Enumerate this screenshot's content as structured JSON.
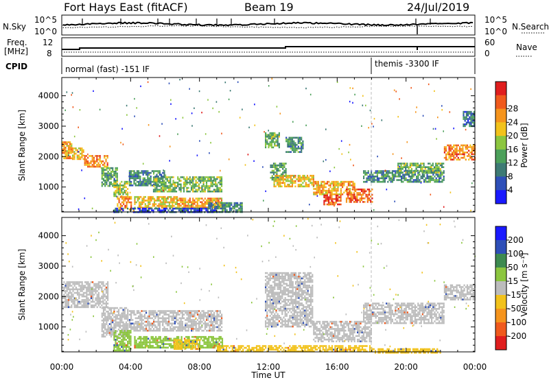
{
  "header": {
    "station": "Fort Hays East (fitACF)",
    "beam": "Beam 19",
    "date": "24/Jul/2019"
  },
  "top_panels": {
    "nsky_label": "N.Sky",
    "nsky_ticks": [
      "10^5",
      "10^0"
    ],
    "nsearch_label": "N.Search",
    "freq_label_1": "Freq.",
    "freq_label_2": "[MHz]",
    "freq_ticks": [
      "12",
      "8"
    ],
    "nave_ticks": [
      "60",
      "0"
    ],
    "nave_label": "Nave",
    "cpid_label": "CPID",
    "modes": [
      {
        "label": "normal (fast) -151 IF",
        "start_hour": 0,
        "end_hour": 18.0
      },
      {
        "label": "themis -3300 IF",
        "start_hour": 18.0,
        "end_hour": 24
      }
    ]
  },
  "chart_data": [
    {
      "type": "heatmap",
      "name": "power",
      "xlabel": "",
      "ylabel": "Slant Range [km]",
      "xlim": [
        0,
        24
      ],
      "ylim": [
        180,
        4600
      ],
      "yticks": [
        "1000",
        "2000",
        "3000",
        "4000"
      ],
      "colorbar_label": "Power [dB]",
      "colorbar_ticks": [
        "4",
        "8",
        "12",
        "16",
        "20",
        "24",
        "28"
      ],
      "colorbar_range": [
        0,
        32
      ],
      "colors": [
        "#1a1aff",
        "#2e4fb8",
        "#3d7a74",
        "#4ca05a",
        "#8cc63f",
        "#f2c21b",
        "#f5941d",
        "#f05a1d",
        "#e01e1e"
      ],
      "bands": [
        {
          "x0": 0.0,
          "x1": 0.6,
          "y0": 1950,
          "y1": 2500,
          "value": 22
        },
        {
          "x0": 0.6,
          "x1": 1.3,
          "y0": 1900,
          "y1": 2300,
          "value": 20
        },
        {
          "x0": 1.3,
          "x1": 2.7,
          "y0": 1650,
          "y1": 2050,
          "value": 24
        },
        {
          "x0": 2.3,
          "x1": 3.2,
          "y0": 1050,
          "y1": 1650,
          "value": 12
        },
        {
          "x0": 3.0,
          "x1": 3.8,
          "y0": 700,
          "y1": 1200,
          "value": 16
        },
        {
          "x0": 3.2,
          "x1": 4.0,
          "y0": 250,
          "y1": 700,
          "value": 24
        },
        {
          "x0": 3.9,
          "x1": 6.0,
          "y0": 1050,
          "y1": 1550,
          "value": 10
        },
        {
          "x0": 5.3,
          "x1": 9.3,
          "y0": 850,
          "y1": 1350,
          "value": 14
        },
        {
          "x0": 4.2,
          "x1": 6.7,
          "y0": 300,
          "y1": 700,
          "value": 20
        },
        {
          "x0": 6.7,
          "x1": 9.3,
          "y0": 300,
          "y1": 650,
          "value": 22
        },
        {
          "x0": 8.5,
          "x1": 10.5,
          "y0": 200,
          "y1": 500,
          "value": 10
        },
        {
          "x0": 11.8,
          "x1": 12.6,
          "y0": 2300,
          "y1": 2800,
          "value": 14
        },
        {
          "x0": 12.1,
          "x1": 13.0,
          "y0": 1250,
          "y1": 1800,
          "value": 12
        },
        {
          "x0": 12.3,
          "x1": 14.6,
          "y0": 1000,
          "y1": 1400,
          "value": 20
        },
        {
          "x0": 14.6,
          "x1": 17.0,
          "y0": 750,
          "y1": 1200,
          "value": 22
        },
        {
          "x0": 15.2,
          "x1": 16.2,
          "y0": 400,
          "y1": 750,
          "value": 28
        },
        {
          "x0": 16.5,
          "x1": 18.0,
          "y0": 500,
          "y1": 950,
          "value": 26
        },
        {
          "x0": 17.5,
          "x1": 22.2,
          "y0": 1150,
          "y1": 1550,
          "value": 10
        },
        {
          "x0": 19.5,
          "x1": 22.2,
          "y0": 1450,
          "y1": 1800,
          "value": 14
        },
        {
          "x0": 22.2,
          "x1": 24.0,
          "y0": 1900,
          "y1": 2400,
          "value": 24
        },
        {
          "x0": 23.3,
          "x1": 24.0,
          "y0": 3000,
          "y1": 3500,
          "value": 8
        },
        {
          "x0": 13.0,
          "x1": 14.0,
          "y0": 2150,
          "y1": 2650,
          "value": 10
        },
        {
          "x0": 3.0,
          "x1": 9.0,
          "y0": 180,
          "y1": 320,
          "value": 6
        }
      ]
    },
    {
      "type": "heatmap",
      "name": "velocity",
      "xlabel": "Time UT",
      "ylabel": "Slant Range [km]",
      "xlim": [
        0,
        24
      ],
      "ylim": [
        180,
        4600
      ],
      "xticks": [
        "00:00",
        "04:00",
        "08:00",
        "12:00",
        "16:00",
        "20:00",
        "00:00"
      ],
      "yticks": [
        "1000",
        "2000",
        "3000",
        "4000"
      ],
      "colorbar_label": "Velocity [m s⁻¹]",
      "colorbar_ticks": [
        "200",
        "100",
        "50",
        "15",
        "-15",
        "-50",
        "-100",
        "-200"
      ],
      "colors": [
        "#1a1aff",
        "#2e4fb8",
        "#3d8a50",
        "#8cc63f",
        "#bcbcbc",
        "#f2c21b",
        "#f5941d",
        "#f05a1d",
        "#e01e1e"
      ],
      "bands": [
        {
          "x0": 0.0,
          "x1": 2.7,
          "y0": 1650,
          "y1": 2500,
          "value": 0
        },
        {
          "x0": 2.3,
          "x1": 3.8,
          "y0": 700,
          "y1": 1650,
          "value": 0
        },
        {
          "x0": 3.0,
          "x1": 4.0,
          "y0": 250,
          "y1": 900,
          "value": 30
        },
        {
          "x0": 3.9,
          "x1": 9.3,
          "y0": 850,
          "y1": 1550,
          "value": 0
        },
        {
          "x0": 4.2,
          "x1": 9.3,
          "y0": 300,
          "y1": 700,
          "value": 25
        },
        {
          "x0": 6.5,
          "x1": 8.0,
          "y0": 300,
          "y1": 600,
          "value": -40
        },
        {
          "x0": 11.8,
          "x1": 14.6,
          "y0": 1000,
          "y1": 2800,
          "value": 0
        },
        {
          "x0": 14.6,
          "x1": 18.0,
          "y0": 500,
          "y1": 1200,
          "value": 0
        },
        {
          "x0": 17.5,
          "x1": 22.2,
          "y0": 1150,
          "y1": 1800,
          "value": 0
        },
        {
          "x0": 22.2,
          "x1": 24.0,
          "y0": 1900,
          "y1": 2400,
          "value": 0
        },
        {
          "x0": 9.0,
          "x1": 18.0,
          "y0": 180,
          "y1": 400,
          "value": -40
        },
        {
          "x0": 18.0,
          "x1": 22.0,
          "y0": 180,
          "y1": 300,
          "value": -40
        }
      ]
    }
  ]
}
